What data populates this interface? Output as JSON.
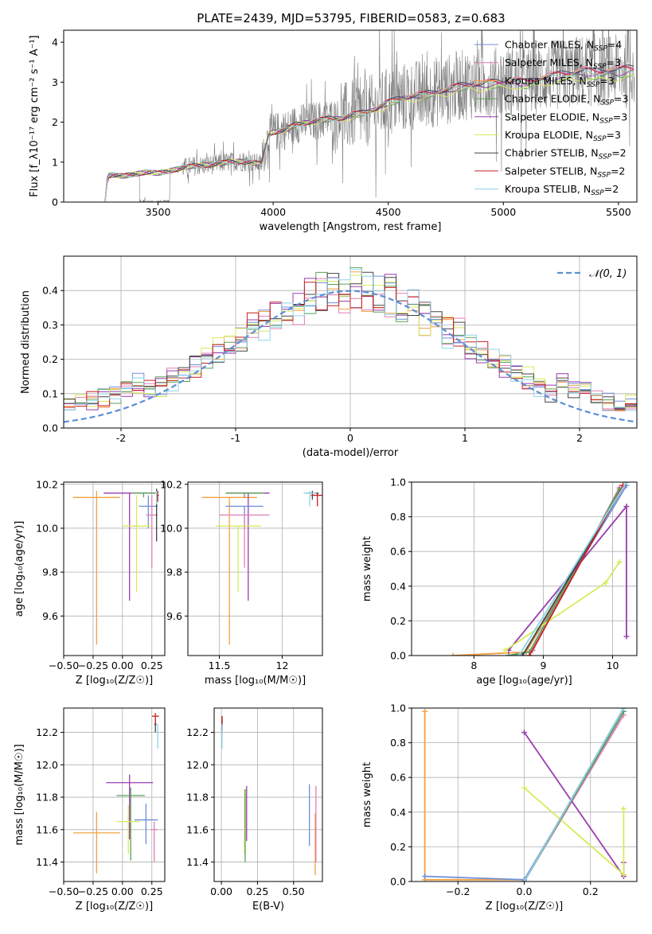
{
  "figure_title": "PLATE=2439, MJD=53795, FIBERID=0583, z=0.683",
  "colors": {
    "Chabrier MILES": "#6f8fd8",
    "Salpeter MILES": "#e07fb8",
    "Kroupa MILES": "#f4a040",
    "Chabrier ELODIE": "#5aa05a",
    "Salpeter ELODIE": "#9a3cb0",
    "Kroupa ELODIE": "#d8ea5a",
    "Chabrier STELIB": "#444444",
    "Salpeter STELIB": "#c82020",
    "Kroupa STELIB": "#8fd3e6",
    "data": "#808080",
    "normal_curve": "#5b8fd6"
  },
  "chart_data": [
    {
      "id": "spectrum",
      "type": "line",
      "xlabel": "wavelength [Angstrom, rest frame]",
      "ylabel": "Flux [f_λ10⁻¹⁷ erg cm⁻² s⁻¹ A⁻¹]",
      "xlim": [
        3090,
        5580
      ],
      "ylim": [
        0,
        4.3
      ],
      "xticks": [
        3500,
        4000,
        4500,
        5000,
        5500
      ],
      "yticks": [
        0,
        1,
        2,
        3,
        4
      ],
      "legend": {
        "position": "top-right",
        "entries": [
          {
            "label": "Chabrier MILES, N",
            "sub": "SSP",
            "suffix": "=4",
            "model": "Chabrier MILES"
          },
          {
            "label": "Salpeter MILES, N",
            "sub": "SSP",
            "suffix": "=3",
            "model": "Salpeter MILES"
          },
          {
            "label": "Kroupa MILES, N",
            "sub": "SSP",
            "suffix": "=3",
            "model": "Kroupa MILES"
          },
          {
            "label": "Chabrier ELODIE, N",
            "sub": "SSP",
            "suffix": "=3",
            "model": "Chabrier ELODIE"
          },
          {
            "label": "Salpeter ELODIE, N",
            "sub": "SSP",
            "suffix": "=3",
            "model": "Salpeter ELODIE"
          },
          {
            "label": "Kroupa ELODIE, N",
            "sub": "SSP",
            "suffix": "=3",
            "model": "Kroupa ELODIE"
          },
          {
            "label": "Chabrier STELIB, N",
            "sub": "SSP",
            "suffix": "=2",
            "model": "Chabrier STELIB"
          },
          {
            "label": "Salpeter STELIB, N",
            "sub": "SSP",
            "suffix": "=2",
            "model": "Salpeter STELIB"
          },
          {
            "label": "Kroupa STELIB, N",
            "sub": "SSP",
            "suffix": "=2",
            "model": "Kroupa STELIB"
          }
        ]
      },
      "model_curve": {
        "x": [
          3270,
          3280,
          3300,
          3350,
          3400,
          3450,
          3500,
          3550,
          3600,
          3650,
          3700,
          3750,
          3800,
          3850,
          3900,
          3950,
          3960,
          3980,
          4000,
          4050,
          4100,
          4150,
          4200,
          4250,
          4300,
          4350,
          4400,
          4450,
          4500,
          4550,
          4600,
          4650,
          4700,
          4750,
          4800,
          4850,
          4900,
          4950,
          5000,
          5050,
          5100,
          5150,
          5200,
          5250,
          5300,
          5350,
          5400,
          5450,
          5500,
          5550
        ],
        "y": [
          0.0,
          0.65,
          0.68,
          0.65,
          0.7,
          0.75,
          0.72,
          0.78,
          0.85,
          0.9,
          0.92,
          0.95,
          1.0,
          1.02,
          1.0,
          0.95,
          1.2,
          1.7,
          1.75,
          1.8,
          1.95,
          2.0,
          2.05,
          2.1,
          2.1,
          2.2,
          2.25,
          2.35,
          2.5,
          2.6,
          2.65,
          2.7,
          2.75,
          2.8,
          2.9,
          2.95,
          2.95,
          3.0,
          3.0,
          3.05,
          3.0,
          3.1,
          3.15,
          3.2,
          3.25,
          3.3,
          3.25,
          3.3,
          3.3,
          3.35
        ]
      },
      "data_visible_x": [
        3280,
        3560
      ]
    },
    {
      "id": "residuals",
      "type": "bar",
      "xlabel": "(data-model)/error",
      "ylabel": "Normed distribution",
      "xlim": [
        -2.5,
        2.5
      ],
      "ylim": [
        0,
        0.5
      ],
      "xticks": [
        -2,
        -1,
        0,
        1,
        2
      ],
      "yticks": [
        0.0,
        0.1,
        0.2,
        0.3,
        0.4
      ],
      "grid": true,
      "legend": {
        "position": "top-right",
        "label": "𝒩(0, 1)"
      },
      "bin_width": 0.1
    },
    {
      "id": "age_vs_Z",
      "type": "scatter",
      "xlabel": "Z [log₁₀(Z/Z☉)]",
      "ylabel": "age  [log₁₀(age/yr)]",
      "xlim": [
        -0.5,
        0.36
      ],
      "ylim": [
        9.42,
        10.21
      ],
      "xticks": [
        -0.5,
        -0.25,
        0.0,
        0.25
      ],
      "xticklabels": [
        "−0.50",
        "−0.25",
        "0.00",
        "0.25"
      ],
      "yticks": [
        9.6,
        9.8,
        10.0,
        10.2
      ],
      "grid": true,
      "points": [
        {
          "model": "Kroupa MILES",
          "x": -0.22,
          "xerr": 0.2,
          "y": 10.14,
          "yerr_lo": 0.67,
          "yerr_hi": 0.03
        },
        {
          "model": "Salpeter ELODIE",
          "x": 0.06,
          "xerr": 0.22,
          "y": 10.16,
          "yerr_lo": 0.49,
          "yerr_hi": 0.0
        },
        {
          "model": "Chabrier MILES",
          "x": 0.22,
          "xerr": 0.08,
          "y": 10.1,
          "yerr_lo": 0.1,
          "yerr_hi": 0.05
        },
        {
          "model": "Salpeter MILES",
          "x": 0.25,
          "xerr": 0.05,
          "y": 10.06,
          "yerr_lo": 0.24,
          "yerr_hi": 0.09
        },
        {
          "model": "Kroupa ELODIE",
          "x": 0.12,
          "xerr": 0.12,
          "y": 10.01,
          "yerr_lo": 0.3,
          "yerr_hi": 0.14
        },
        {
          "model": "Chabrier ELODIE",
          "x": 0.18,
          "xerr": 0.1,
          "y": 10.16,
          "yerr_lo": 0.02,
          "yerr_hi": 0.0
        },
        {
          "model": "Chabrier STELIB",
          "x": 0.29,
          "xerr": 0.01,
          "y": 10.16,
          "yerr_lo": 0.22,
          "yerr_hi": 0.02
        },
        {
          "model": "Salpeter STELIB",
          "x": 0.3,
          "xerr": 0.01,
          "y": 10.15,
          "yerr_lo": 0.03,
          "yerr_hi": 0.02
        },
        {
          "model": "Kroupa STELIB",
          "x": 0.29,
          "xerr": 0.01,
          "y": 10.16,
          "yerr_lo": 0.05,
          "yerr_hi": 0.01
        }
      ]
    },
    {
      "id": "age_vs_mass",
      "type": "scatter",
      "xlabel": "mass [log₁₀(M/M☉)]",
      "ylabel": "",
      "xlim": [
        11.25,
        12.32
      ],
      "ylim": [
        9.42,
        10.21
      ],
      "xticks": [
        11.5,
        12.0
      ],
      "yticks": [
        9.6,
        9.8,
        10.0,
        10.2
      ],
      "grid": true,
      "points": [
        {
          "model": "Kroupa MILES",
          "x": 11.58,
          "xerr": 0.22,
          "y": 10.14,
          "yerr_lo": 0.67,
          "yerr_hi": 0.0
        },
        {
          "model": "Salpeter ELODIE",
          "x": 11.73,
          "xerr": 0.17,
          "y": 10.16,
          "yerr_lo": 0.49,
          "yerr_hi": 0.0
        },
        {
          "model": "Chabrier MILES",
          "x": 11.7,
          "xerr": 0.15,
          "y": 10.1,
          "yerr_lo": 0.1,
          "yerr_hi": 0.0
        },
        {
          "model": "Salpeter MILES",
          "x": 11.7,
          "xerr": 0.2,
          "y": 10.06,
          "yerr_lo": 0.24,
          "yerr_hi": 0.0
        },
        {
          "model": "Kroupa ELODIE",
          "x": 11.65,
          "xerr": 0.18,
          "y": 10.01,
          "yerr_lo": 0.3,
          "yerr_hi": 0.0
        },
        {
          "model": "Chabrier ELODIE",
          "x": 11.7,
          "xerr": 0.15,
          "y": 10.16,
          "yerr_lo": 0.02,
          "yerr_hi": 0.0
        },
        {
          "model": "Chabrier STELIB",
          "x": 12.24,
          "xerr": 0.05,
          "y": 10.16,
          "yerr_lo": 0.03,
          "yerr_hi": 0.01
        },
        {
          "model": "Salpeter STELIB",
          "x": 12.28,
          "xerr": 0.05,
          "y": 10.15,
          "yerr_lo": 0.05,
          "yerr_hi": 0.01
        },
        {
          "model": "Kroupa STELIB",
          "x": 12.22,
          "xerr": 0.05,
          "y": 10.16,
          "yerr_lo": 0.06,
          "yerr_hi": 0.01
        }
      ]
    },
    {
      "id": "weight_vs_age",
      "type": "line",
      "xlabel": "age  [log₁₀(age/yr)]",
      "ylabel": "mass weight",
      "xlim": [
        7.1,
        10.35
      ],
      "ylim": [
        0.0,
        1.0
      ],
      "xticks": [
        8,
        9,
        10
      ],
      "yticks": [
        0.0,
        0.2,
        0.4,
        0.6,
        0.8,
        1.0
      ],
      "grid": true,
      "series": [
        {
          "model": "Chabrier MILES",
          "x": [
            8.5,
            8.75,
            10.2
          ],
          "y": [
            0.0,
            0.02,
            0.98
          ]
        },
        {
          "model": "Salpeter MILES",
          "x": [
            8.6,
            8.85,
            10.1
          ],
          "y": [
            0.0,
            0.03,
            0.97
          ]
        },
        {
          "model": "Kroupa MILES",
          "x": [
            7.7,
            8.75,
            10.15
          ],
          "y": [
            0.0,
            0.02,
            0.98
          ]
        },
        {
          "model": "Chabrier ELODIE",
          "x": [
            8.5,
            8.8,
            10.1
          ],
          "y": [
            0.0,
            0.02,
            0.96
          ]
        },
        {
          "model": "Salpeter ELODIE",
          "x": [
            8.5,
            10.2,
            10.2
          ],
          "y": [
            0.03,
            0.86,
            0.11
          ]
        },
        {
          "model": "Kroupa ELODIE",
          "x": [
            8.45,
            9.9,
            10.1
          ],
          "y": [
            0.03,
            0.42,
            0.54
          ]
        },
        {
          "model": "Chabrier STELIB",
          "x": [
            8.7,
            10.2
          ],
          "y": [
            0.0,
            1.0
          ]
        },
        {
          "model": "Salpeter STELIB",
          "x": [
            8.8,
            10.15
          ],
          "y": [
            0.0,
            0.98
          ]
        },
        {
          "model": "Kroupa STELIB",
          "x": [
            8.65,
            10.2
          ],
          "y": [
            0.0,
            1.0
          ]
        }
      ]
    },
    {
      "id": "mass_vs_Z",
      "type": "scatter",
      "xlabel": "Z [log₁₀(Z/Z☉)]",
      "ylabel": "mass [log₁₀(M/M☉)]",
      "xlim": [
        -0.5,
        0.36
      ],
      "ylim": [
        11.28,
        12.35
      ],
      "xticks": [
        -0.5,
        -0.25,
        0.0,
        0.25
      ],
      "xticklabels": [
        "−0.50",
        "−0.25",
        "0.00",
        "0.25"
      ],
      "yticks": [
        11.4,
        11.6,
        11.8,
        12.0,
        12.2
      ],
      "grid": true,
      "points": [
        {
          "model": "Kroupa MILES",
          "x": -0.22,
          "xerr": 0.2,
          "y": 11.58,
          "yerr_lo": 0.25,
          "yerr_hi": 0.13
        },
        {
          "model": "Salpeter ELODIE",
          "x": 0.06,
          "xerr": 0.2,
          "y": 11.89,
          "yerr_lo": 0.35,
          "yerr_hi": 0.05
        },
        {
          "model": "Chabrier ELODIE",
          "x": 0.07,
          "xerr": 0.12,
          "y": 11.81,
          "yerr_lo": 0.4,
          "yerr_hi": 0.05
        },
        {
          "model": "Chabrier MILES",
          "x": 0.2,
          "xerr": 0.1,
          "y": 11.66,
          "yerr_lo": 0.15,
          "yerr_hi": 0.1
        },
        {
          "model": "Kroupa ELODIE",
          "x": 0.05,
          "xerr": 0.1,
          "y": 11.65,
          "yerr_lo": 0.2,
          "yerr_hi": 0.1
        },
        {
          "model": "Salpeter MILES",
          "x": 0.27,
          "xerr": 0.03,
          "y": 11.6,
          "yerr_lo": 0.2,
          "yerr_hi": 0.05
        },
        {
          "model": "Chabrier STELIB",
          "x": 0.28,
          "xerr": 0.01,
          "y": 12.25,
          "yerr_lo": 0.05,
          "yerr_hi": 0.03
        },
        {
          "model": "Salpeter STELIB",
          "x": 0.28,
          "xerr": 0.03,
          "y": 12.3,
          "yerr_lo": 0.05,
          "yerr_hi": 0.02
        },
        {
          "model": "Kroupa STELIB",
          "x": 0.3,
          "xerr": 0.01,
          "y": 12.2,
          "yerr_lo": 0.1,
          "yerr_hi": 0.05
        }
      ]
    },
    {
      "id": "mass_vs_ebv",
      "type": "scatter",
      "xlabel": "E(B-V)",
      "ylabel": "",
      "xlim": [
        -0.05,
        0.7
      ],
      "ylim": [
        11.28,
        12.35
      ],
      "xticks": [
        0.0,
        0.25,
        0.5
      ],
      "xticklabels": [
        "0.00",
        "0.25",
        "0.50"
      ],
      "yticks": [
        11.4,
        11.6,
        11.8,
        12.0,
        12.2
      ],
      "grid": true,
      "points": [
        {
          "model": "Chabrier STELIB",
          "x": 0.005,
          "y": 12.25,
          "yerr_lo": 0.05,
          "yerr_hi": 0.05
        },
        {
          "model": "Salpeter STELIB",
          "x": 0.005,
          "y": 12.27,
          "yerr_lo": 0.05,
          "yerr_hi": 0.03
        },
        {
          "model": "Kroupa STELIB",
          "x": 0.005,
          "y": 12.2,
          "yerr_lo": 0.1,
          "yerr_hi": 0.05
        },
        {
          "model": "Kroupa ELODIE",
          "x": 0.16,
          "y": 11.65,
          "yerr_lo": 0.2,
          "yerr_hi": 0.2
        },
        {
          "model": "Chabrier ELODIE",
          "x": 0.165,
          "y": 11.6,
          "yerr_lo": 0.2,
          "yerr_hi": 0.25
        },
        {
          "model": "Salpeter ELODIE",
          "x": 0.175,
          "y": 11.75,
          "yerr_lo": 0.22,
          "yerr_hi": 0.12
        },
        {
          "model": "Chabrier MILES",
          "x": 0.61,
          "y": 11.7,
          "yerr_lo": 0.2,
          "yerr_hi": 0.18
        },
        {
          "model": "Kroupa MILES",
          "x": 0.65,
          "y": 11.5,
          "yerr_lo": 0.18,
          "yerr_hi": 0.2
        },
        {
          "model": "Salpeter MILES",
          "x": 0.655,
          "y": 11.6,
          "yerr_lo": 0.2,
          "yerr_hi": 0.27
        }
      ]
    },
    {
      "id": "weight_vs_Z",
      "type": "line",
      "xlabel": "Z [log₁₀(Z/Z☉)]",
      "ylabel": "mass weight",
      "xlim": [
        -0.34,
        0.34
      ],
      "ylim": [
        0.0,
        1.0
      ],
      "xticks": [
        -0.2,
        0.0,
        0.2
      ],
      "xticklabels": [
        "−0.2",
        "0.0",
        "0.2"
      ],
      "yticks": [
        0.0,
        0.2,
        0.4,
        0.6,
        0.8,
        1.0
      ],
      "grid": true,
      "series": [
        {
          "model": "Kroupa MILES",
          "x": [
            -0.3,
            -0.3,
            0.0
          ],
          "y": [
            0.98,
            0.01,
            0.01
          ]
        },
        {
          "model": "Chabrier MILES",
          "x": [
            -0.3,
            0.0,
            0.3
          ],
          "y": [
            0.03,
            0.01,
            0.98
          ]
        },
        {
          "model": "Salpeter MILES",
          "x": [
            0.0,
            0.3
          ],
          "y": [
            0.0,
            0.96
          ]
        },
        {
          "model": "Salpeter ELODIE",
          "x": [
            0.0,
            0.3,
            0.3
          ],
          "y": [
            0.86,
            0.03,
            0.11
          ]
        },
        {
          "model": "Kroupa ELODIE",
          "x": [
            0.0,
            0.3,
            0.3
          ],
          "y": [
            0.54,
            0.04,
            0.42
          ]
        },
        {
          "model": "Chabrier ELODIE",
          "x": [
            0.0,
            0.3
          ],
          "y": [
            0.0,
            0.98
          ]
        },
        {
          "model": "Chabrier STELIB",
          "x": [
            0.0,
            0.3
          ],
          "y": [
            0.0,
            1.0
          ]
        },
        {
          "model": "Kroupa STELIB",
          "x": [
            0.0,
            0.3
          ],
          "y": [
            0.0,
            1.0
          ]
        }
      ]
    }
  ]
}
